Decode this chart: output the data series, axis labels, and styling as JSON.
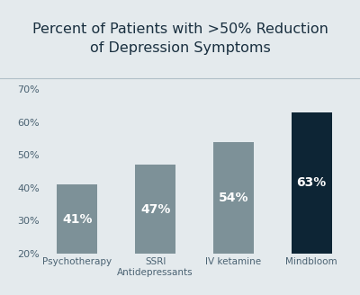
{
  "title": "Percent of Patients with >50% Reduction\nof Depression Symptoms",
  "categories": [
    "Psychotherapy",
    "SSRI\nAntidepressants",
    "IV ketamine",
    "Mindbloom"
  ],
  "values": [
    41,
    47,
    54,
    63
  ],
  "bar_colors": [
    "#7d9198",
    "#7d9198",
    "#7d9198",
    "#0d2535"
  ],
  "label_colors": [
    "#ffffff",
    "#ffffff",
    "#ffffff",
    "#ffffff"
  ],
  "bar_labels": [
    "41%",
    "47%",
    "54%",
    "63%"
  ],
  "ylim": [
    20,
    72
  ],
  "yticks": [
    20,
    30,
    40,
    50,
    60,
    70
  ],
  "ytick_labels": [
    "20%",
    "30%",
    "40%",
    "50%",
    "60%",
    "70%"
  ],
  "title_fontsize": 11.5,
  "label_fontsize": 10,
  "tick_fontsize": 8,
  "xtick_fontsize": 7.5,
  "background_color": "#e4eaed",
  "plot_bg_color": "#e4eaed",
  "title_bg_color": "#dce3e7",
  "title_color": "#1a3040",
  "tick_color": "#4a6272",
  "bar_width": 0.52,
  "separator_color": "#b0bfc8"
}
